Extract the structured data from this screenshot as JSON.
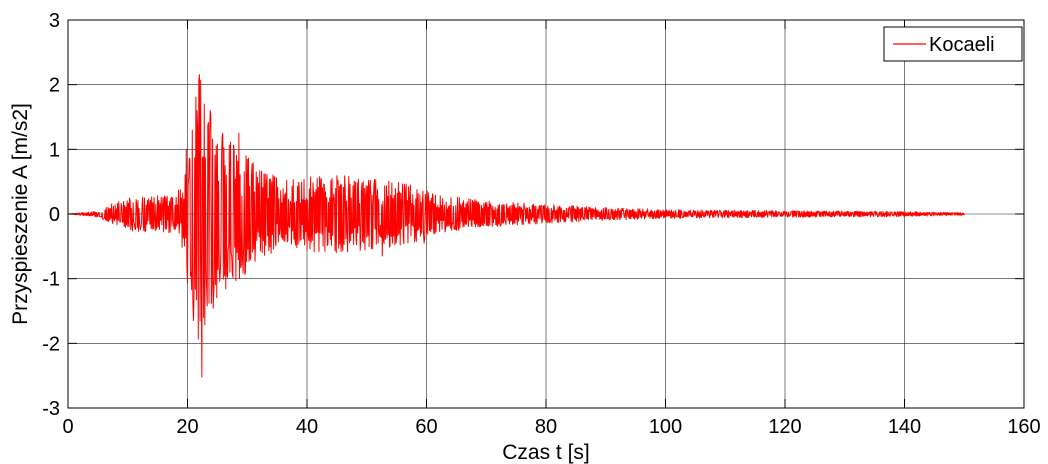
{
  "chart_data": {
    "type": "line",
    "title": "",
    "xlabel": "Czas t [s]",
    "ylabel": "Przyspieszenie A [m/s2]",
    "xlim": [
      0,
      160
    ],
    "ylim": [
      -3,
      3
    ],
    "xticks": [
      0,
      20,
      40,
      60,
      80,
      100,
      120,
      140,
      160
    ],
    "yticks": [
      -3,
      -2,
      -1,
      0,
      1,
      2,
      3
    ],
    "grid": true,
    "legend_position": "top-right",
    "series": [
      {
        "name": "Kocaeli",
        "color": "#ff0000",
        "x_start": 0,
        "x_end": 150,
        "envelope": [
          [
            0,
            0.0
          ],
          [
            5,
            0.05
          ],
          [
            7,
            0.15
          ],
          [
            10,
            0.25
          ],
          [
            13,
            0.3
          ],
          [
            16,
            0.28
          ],
          [
            18,
            0.3
          ],
          [
            19,
            0.5
          ],
          [
            20,
            1.2
          ],
          [
            21,
            1.9
          ],
          [
            22,
            2.2
          ],
          [
            23,
            1.7
          ],
          [
            25,
            1.4
          ],
          [
            28,
            1.1
          ],
          [
            32,
            0.7
          ],
          [
            36,
            0.55
          ],
          [
            42,
            0.6
          ],
          [
            48,
            0.6
          ],
          [
            52,
            0.55
          ],
          [
            58,
            0.45
          ],
          [
            62,
            0.3
          ],
          [
            70,
            0.2
          ],
          [
            80,
            0.15
          ],
          [
            90,
            0.1
          ],
          [
            100,
            0.07
          ],
          [
            120,
            0.05
          ],
          [
            140,
            0.04
          ],
          [
            150,
            0.02
          ]
        ],
        "peaks": [
          [
            20.2,
            0.55
          ],
          [
            20.6,
            -0.9
          ],
          [
            21.6,
            1.6
          ],
          [
            22.2,
            2.07
          ],
          [
            22.4,
            -2.52
          ],
          [
            22.8,
            1.7
          ],
          [
            23.2,
            -1.15
          ],
          [
            23.8,
            1.6
          ],
          [
            24.4,
            -1.2
          ],
          [
            25.8,
            1.2
          ],
          [
            26.6,
            -0.95
          ],
          [
            28.6,
            1.25
          ],
          [
            29.0,
            -0.8
          ],
          [
            44.2,
            0.55
          ],
          [
            49.4,
            0.5
          ],
          [
            50.6,
            0.52
          ],
          [
            52.6,
            -0.65
          ],
          [
            59.6,
            -0.45
          ]
        ]
      }
    ]
  }
}
